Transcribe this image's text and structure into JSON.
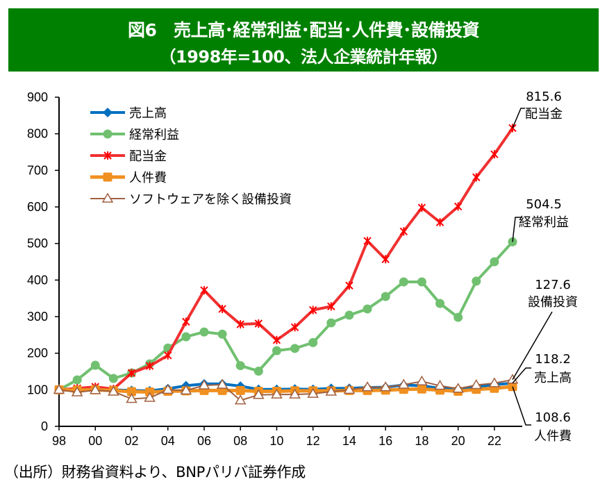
{
  "banner": {
    "title": "図6　売上高･経常利益･配当･人件費･設備投資",
    "subtitle": "（1998年=100、法人企業統計年報）",
    "background": "#008000"
  },
  "source": "（出所）財務省資料より、BNPパリバ証券作成",
  "chart_data": {
    "type": "line",
    "title": "図6　売上高･経常利益･配当･人件費･設備投資",
    "subtitle": "（1998年=100、法人企業統計年報）",
    "xlabel": "",
    "ylabel": "",
    "x": [
      1998,
      1999,
      2000,
      2001,
      2002,
      2003,
      2004,
      2005,
      2006,
      2007,
      2008,
      2009,
      2010,
      2011,
      2012,
      2013,
      2014,
      2015,
      2016,
      2017,
      2018,
      2019,
      2020,
      2021,
      2022,
      2023
    ],
    "xticks": [
      1998,
      2000,
      2002,
      2004,
      2006,
      2008,
      2010,
      2012,
      2014,
      2016,
      2018,
      2020,
      2022
    ],
    "xtick_labels": [
      "98",
      "00",
      "02",
      "04",
      "06",
      "08",
      "10",
      "12",
      "14",
      "16",
      "18",
      "20",
      "22"
    ],
    "ylim": [
      0,
      900
    ],
    "yticks": [
      0,
      100,
      200,
      300,
      400,
      500,
      600,
      700,
      800,
      900
    ],
    "grid": false,
    "legend_position": "top-left",
    "series": [
      {
        "name": "売上高",
        "color": "#0070C0",
        "marker": "diamond",
        "values": [
          100,
          101,
          103,
          100,
          98,
          97,
          103,
          111,
          116,
          116,
          110,
          101,
          101,
          102,
          101,
          104,
          104,
          106,
          107,
          113,
          111,
          104,
          102,
          108,
          114,
          118.2
        ]
      },
      {
        "name": "経常利益",
        "color": "#70C070",
        "marker": "circle",
        "values": [
          100,
          127,
          167,
          131,
          146,
          171,
          214,
          245,
          258,
          252,
          166,
          151,
          207,
          213,
          229,
          283,
          304,
          321,
          355,
          395,
          395,
          336,
          298,
          397,
          450,
          504.5
        ]
      },
      {
        "name": "配当金",
        "color": "#F03030",
        "marker": "asterisk",
        "values": [
          100,
          104,
          108,
          102,
          146,
          165,
          194,
          286,
          372,
          321,
          279,
          281,
          236,
          271,
          318,
          328,
          385,
          507,
          457,
          533,
          598,
          558,
          601,
          681,
          744,
          815.6
        ]
      },
      {
        "name": "人件費",
        "color": "#F09020",
        "marker": "square",
        "values": [
          100,
          99,
          100,
          98,
          95,
          94,
          96,
          97,
          98,
          98,
          98,
          96,
          96,
          97,
          97,
          97,
          98,
          98,
          99,
          101,
          102,
          99,
          96,
          101,
          104,
          108.6
        ]
      },
      {
        "name": "ソフトウェアを除く設備投資",
        "color": "#A06040",
        "marker": "triangle-open",
        "values": [
          100,
          93,
          99,
          95,
          75,
          78,
          100,
          98,
          112,
          114,
          71,
          86,
          87,
          87,
          89,
          95,
          100,
          107,
          107,
          114,
          123,
          111,
          103,
          113,
          118,
          127.6
        ]
      }
    ],
    "annotations": [
      {
        "series": "配当金",
        "value": "815.6",
        "label": "配当金"
      },
      {
        "series": "経常利益",
        "value": "504.5",
        "label": "経常利益"
      },
      {
        "series": "ソフトウェアを除く設備投資",
        "value": "127.6",
        "label": "設備投資"
      },
      {
        "series": "売上高",
        "value": "118.2",
        "label": "売上高"
      },
      {
        "series": "人件費",
        "value": "108.6",
        "label": "人件費"
      }
    ]
  }
}
